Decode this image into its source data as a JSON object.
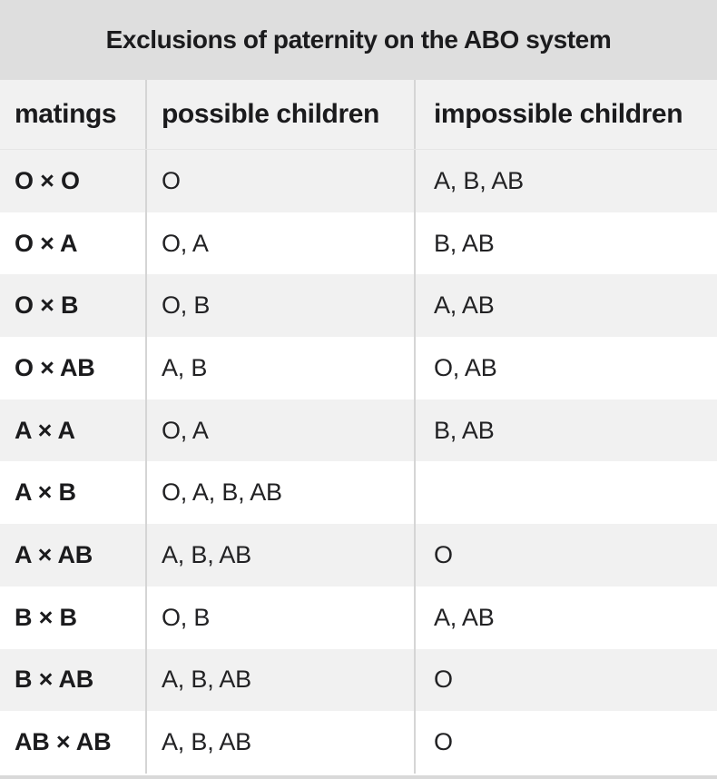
{
  "chart_data": {
    "type": "table",
    "title": "Exclusions of paternity on the ABO system",
    "columns": [
      "matings",
      "possible children",
      "impossible children"
    ],
    "rows": [
      [
        "O × O",
        "O",
        "A, B, AB"
      ],
      [
        "O × A",
        "O, A",
        "B, AB"
      ],
      [
        "O × B",
        "O, B",
        "A, AB"
      ],
      [
        "O × AB",
        "A, B",
        "O, AB"
      ],
      [
        "A × A",
        "O, A",
        "B, AB"
      ],
      [
        "A × B",
        "O, A, B, AB",
        ""
      ],
      [
        "A × AB",
        "A, B, AB",
        "O"
      ],
      [
        "B × B",
        "O, B",
        "A, AB"
      ],
      [
        "B × AB",
        "A, B, AB",
        "O"
      ],
      [
        "AB × AB",
        "A, B, AB",
        "O"
      ]
    ],
    "layout": {
      "legend": "none",
      "grid": "column-dividers",
      "row_striping": "even-rows-gray"
    }
  },
  "colors": {
    "title_bar_bg": "#dedede",
    "header_bg": "#f1f1f1",
    "row_bg": "#ffffff",
    "row_alt_bg": "#f1f1f1",
    "divider": "#d5d5d5",
    "text": "#1b1b1d",
    "bottom_strip_bg": "#d9d9d9"
  }
}
